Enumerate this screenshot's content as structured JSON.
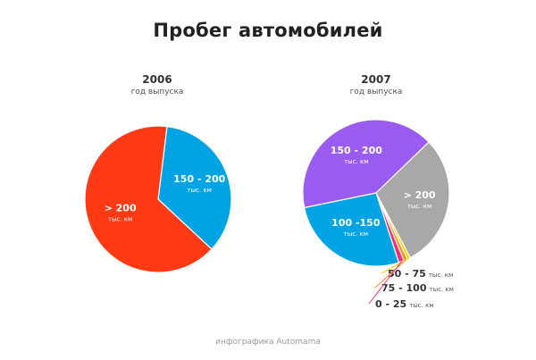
{
  "title": "Пробег автомобилей",
  "footer": "инфографика Automama",
  "colors": {
    "red": "#FF3A14",
    "blue": "#00A3E4",
    "purple": "#9A5CF0",
    "gray": "#A8A8A8",
    "pink": "#F0307A",
    "orange": "#FF8A1A",
    "yellow": "#F5D000"
  },
  "chart_data": [
    {
      "type": "pie",
      "year": "2006",
      "subtitle": "год выпуска",
      "slices": [
        {
          "label": "150 - 200",
          "unit": "тыс. км",
          "value": 35,
          "color": "#00A3E4"
        },
        {
          "label": "> 200",
          "unit": "тыс. км",
          "value": 65,
          "color": "#FF3A14"
        }
      ]
    },
    {
      "type": "pie",
      "year": "2007",
      "subtitle": "год выпуска",
      "slices": [
        {
          "label": "150 - 200",
          "unit": "тыс. км",
          "value": 41,
          "color": "#9A5CF0"
        },
        {
          "label": "> 200",
          "unit": "тыс. км",
          "value": 29.5,
          "color": "#A8A8A8"
        },
        {
          "label": "50 - 75",
          "unit": "тыс. км",
          "value": 0.7,
          "color": "#F5D000"
        },
        {
          "label": "75 - 100",
          "unit": "тыс. км",
          "value": 0.8,
          "color": "#FF8A1A"
        },
        {
          "label": "0 - 25",
          "unit": "тыс. км",
          "value": 1.2,
          "color": "#F0307A"
        },
        {
          "label": "100 -150",
          "unit": "тыс. км",
          "value": 26.8,
          "color": "#00A3E4"
        }
      ]
    }
  ]
}
